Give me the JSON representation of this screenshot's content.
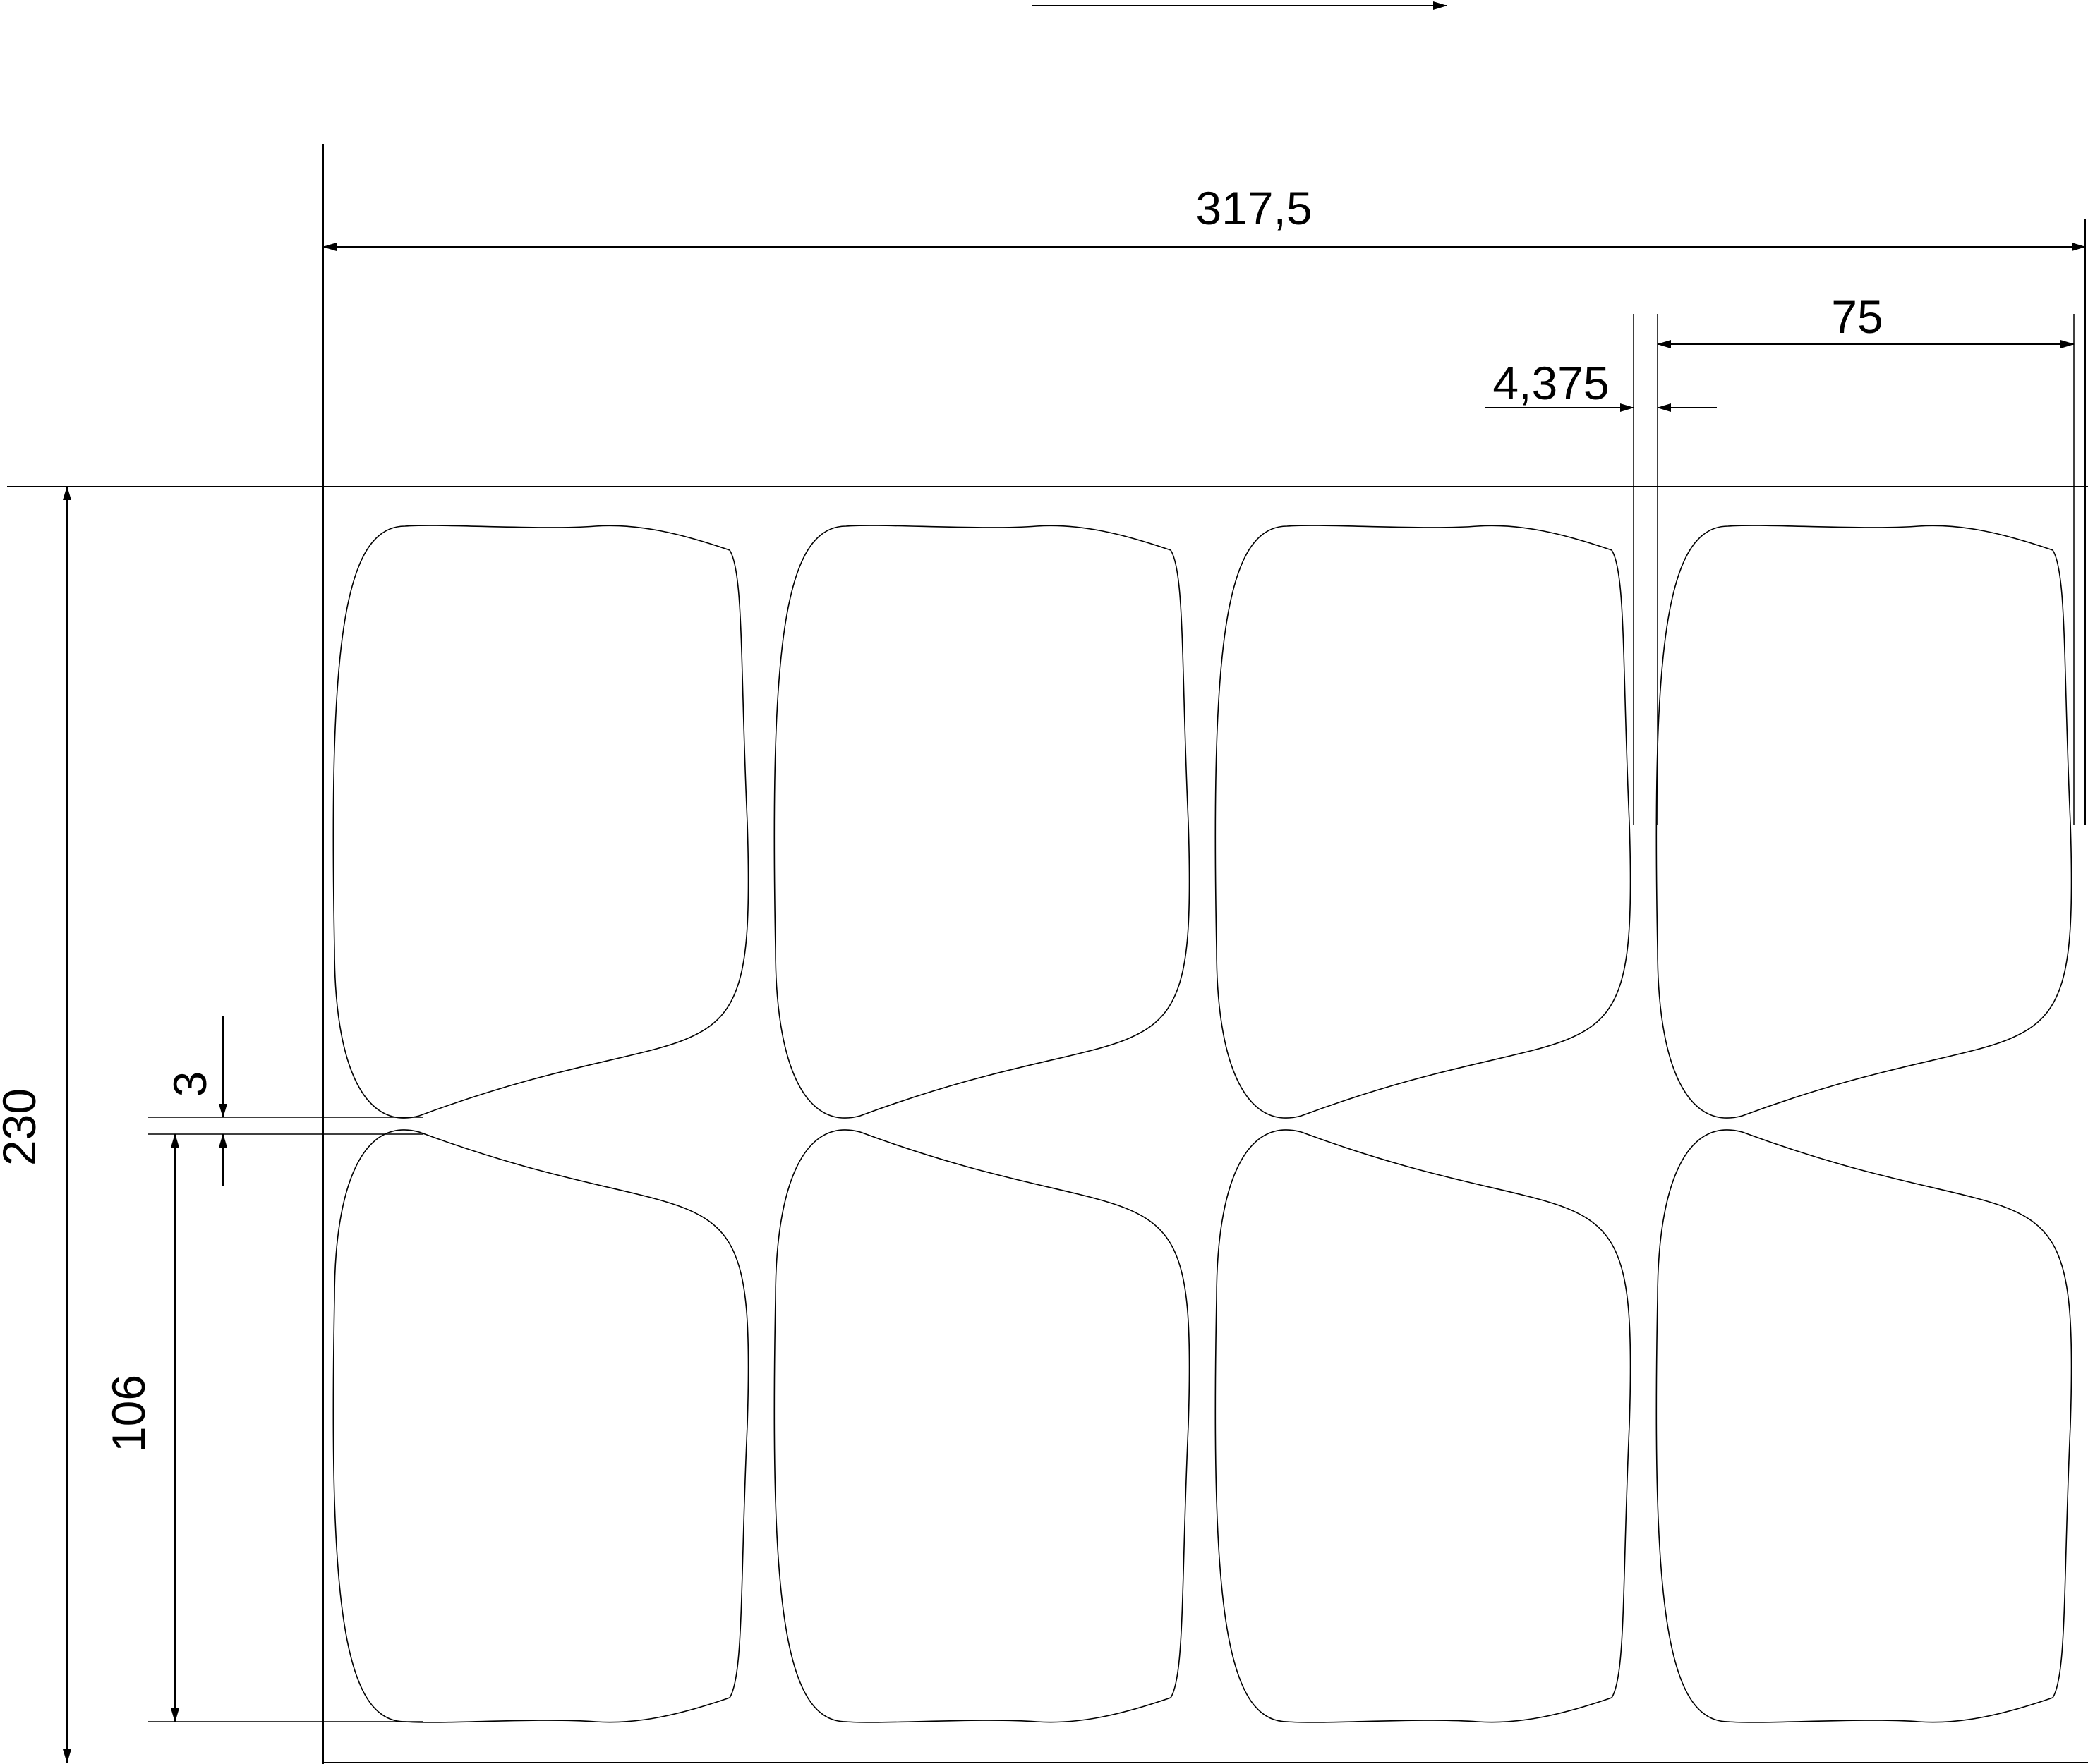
{
  "dimensions": {
    "total_width": "317,5",
    "label_width": "75",
    "gap": "4,375",
    "total_height": "230",
    "label_height": "106",
    "row_gap": "3"
  },
  "layout_info": {
    "columns": 4,
    "rows": 2
  },
  "colors": {
    "line": "#000000",
    "background": "#ffffff"
  }
}
